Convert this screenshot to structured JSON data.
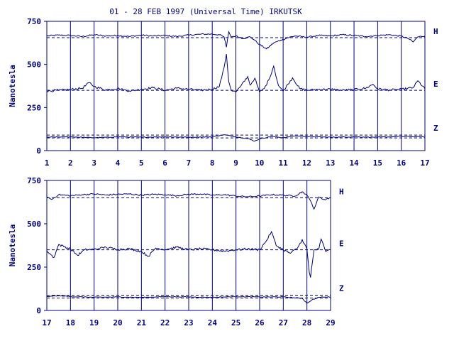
{
  "chart_data": {
    "type": "line",
    "title": "01 - 28 FEB 1997 (Universal Time) IRKUTSK",
    "ylabel": "Nanotesla",
    "y_ticks": [
      0,
      250,
      500,
      750
    ],
    "ylim": [
      0,
      750
    ],
    "color": "#000080",
    "panels": [
      {
        "xlim": [
          1,
          17
        ],
        "x_ticks": [
          1,
          2,
          3,
          4,
          5,
          6,
          7,
          8,
          9,
          10,
          11,
          12,
          13,
          14,
          15,
          16,
          17
        ],
        "series": [
          {
            "name": "H",
            "baseline": 655,
            "points": [
              [
                1,
                665
              ],
              [
                1.5,
                670
              ],
              [
                2,
                668
              ],
              [
                2.5,
                662
              ],
              [
                3,
                672
              ],
              [
                3.5,
                665
              ],
              [
                4,
                668
              ],
              [
                4.5,
                662
              ],
              [
                5,
                670
              ],
              [
                5.5,
                665
              ],
              [
                6,
                668
              ],
              [
                6.5,
                662
              ],
              [
                7,
                670
              ],
              [
                7.5,
                675
              ],
              [
                8,
                676
              ],
              [
                8.3,
                672
              ],
              [
                8.5,
                660
              ],
              [
                8.6,
                600
              ],
              [
                8.7,
                690
              ],
              [
                8.8,
                660
              ],
              [
                9,
                665
              ],
              [
                9.3,
                650
              ],
              [
                9.6,
                660
              ],
              [
                9.8,
                640
              ],
              [
                10,
                615
              ],
              [
                10.3,
                590
              ],
              [
                10.6,
                625
              ],
              [
                10.9,
                640
              ],
              [
                11.2,
                655
              ],
              [
                11.5,
                665
              ],
              [
                12,
                658
              ],
              [
                12.5,
                668
              ],
              [
                13,
                665
              ],
              [
                13.5,
                672
              ],
              [
                14,
                668
              ],
              [
                14.5,
                662
              ],
              [
                15,
                668
              ],
              [
                15.5,
                672
              ],
              [
                16,
                664
              ],
              [
                16.3,
                650
              ],
              [
                16.5,
                630
              ],
              [
                16.7,
                660
              ],
              [
                17,
                665
              ]
            ]
          },
          {
            "name": "E",
            "baseline": 350,
            "points": [
              [
                1,
                345
              ],
              [
                1.5,
                350
              ],
              [
                2,
                355
              ],
              [
                2.5,
                362
              ],
              [
                2.8,
                395
              ],
              [
                3,
                372
              ],
              [
                3.5,
                352
              ],
              [
                4,
                360
              ],
              [
                4.5,
                346
              ],
              [
                5,
                356
              ],
              [
                5.5,
                365
              ],
              [
                6,
                350
              ],
              [
                6.5,
                362
              ],
              [
                7,
                356
              ],
              [
                7.5,
                350
              ],
              [
                8,
                356
              ],
              [
                8.3,
                372
              ],
              [
                8.5,
                480
              ],
              [
                8.6,
                560
              ],
              [
                8.7,
                400
              ],
              [
                8.8,
                352
              ],
              [
                9,
                340
              ],
              [
                9.2,
                372
              ],
              [
                9.5,
                430
              ],
              [
                9.6,
                380
              ],
              [
                9.8,
                420
              ],
              [
                10,
                340
              ],
              [
                10.2,
                360
              ],
              [
                10.4,
                412
              ],
              [
                10.6,
                490
              ],
              [
                10.8,
                378
              ],
              [
                11,
                345
              ],
              [
                11.2,
                385
              ],
              [
                11.4,
                422
              ],
              [
                11.7,
                360
              ],
              [
                12,
                350
              ],
              [
                12.5,
                355
              ],
              [
                13,
                356
              ],
              [
                13.5,
                350
              ],
              [
                14,
                354
              ],
              [
                14.5,
                362
              ],
              [
                14.8,
                385
              ],
              [
                15,
                358
              ],
              [
                15.5,
                352
              ],
              [
                16,
                355
              ],
              [
                16.5,
                365
              ],
              [
                16.7,
                405
              ],
              [
                17,
                358
              ]
            ]
          },
          {
            "name": "Z",
            "baseline": 90,
            "points": [
              [
                1,
                78
              ],
              [
                2,
                80
              ],
              [
                3,
                75
              ],
              [
                4,
                80
              ],
              [
                5,
                78
              ],
              [
                6,
                80
              ],
              [
                7,
                78
              ],
              [
                8,
                80
              ],
              [
                8.5,
                92
              ],
              [
                9,
                80
              ],
              [
                9.5,
                70
              ],
              [
                9.8,
                55
              ],
              [
                10,
                68
              ],
              [
                10.5,
                82
              ],
              [
                11,
                75
              ],
              [
                11.5,
                85
              ],
              [
                12,
                82
              ],
              [
                12.5,
                80
              ],
              [
                13,
                78
              ],
              [
                14,
                80
              ],
              [
                15,
                78
              ],
              [
                16,
                82
              ],
              [
                17,
                80
              ]
            ]
          }
        ]
      },
      {
        "xlim": [
          17,
          29
        ],
        "x_ticks": [
          17,
          18,
          19,
          20,
          21,
          22,
          23,
          24,
          25,
          26,
          27,
          28,
          29
        ],
        "series": [
          {
            "name": "H",
            "baseline": 650,
            "points": [
              [
                17,
                655
              ],
              [
                17.2,
                640
              ],
              [
                17.5,
                668
              ],
              [
                18,
                662
              ],
              [
                18.5,
                668
              ],
              [
                19,
                672
              ],
              [
                19.5,
                666
              ],
              [
                20,
                670
              ],
              [
                20.5,
                672
              ],
              [
                21,
                665
              ],
              [
                21.5,
                670
              ],
              [
                22,
                668
              ],
              [
                22.5,
                662
              ],
              [
                23,
                670
              ],
              [
                23.5,
                672
              ],
              [
                24,
                665
              ],
              [
                24.5,
                668
              ],
              [
                25,
                660
              ],
              [
                25.5,
                656
              ],
              [
                26,
                660
              ],
              [
                26.5,
                668
              ],
              [
                27,
                665
              ],
              [
                27.5,
                660
              ],
              [
                27.8,
                685
              ],
              [
                28,
                665
              ],
              [
                28.2,
                620
              ],
              [
                28.3,
                585
              ],
              [
                28.5,
                655
              ],
              [
                28.7,
                640
              ],
              [
                29,
                648
              ]
            ]
          },
          {
            "name": "E",
            "baseline": 350,
            "points": [
              [
                17,
                345
              ],
              [
                17.3,
                305
              ],
              [
                17.5,
                380
              ],
              [
                18,
                355
              ],
              [
                18.3,
                318
              ],
              [
                18.6,
                350
              ],
              [
                19,
                352
              ],
              [
                19.5,
                365
              ],
              [
                20,
                352
              ],
              [
                20.5,
                356
              ],
              [
                21,
                340
              ],
              [
                21.3,
                312
              ],
              [
                21.6,
                360
              ],
              [
                22,
                352
              ],
              [
                22.5,
                365
              ],
              [
                23,
                350
              ],
              [
                23.5,
                356
              ],
              [
                24,
                350
              ],
              [
                24.5,
                342
              ],
              [
                25,
                350
              ],
              [
                25.5,
                355
              ],
              [
                26,
                350
              ],
              [
                26.3,
                405
              ],
              [
                26.5,
                455
              ],
              [
                26.7,
                375
              ],
              [
                27,
                350
              ],
              [
                27.3,
                330
              ],
              [
                27.6,
                360
              ],
              [
                27.8,
                408
              ],
              [
                28,
                355
              ],
              [
                28.1,
                220
              ],
              [
                28.15,
                190
              ],
              [
                28.3,
                350
              ],
              [
                28.5,
                352
              ],
              [
                28.6,
                412
              ],
              [
                28.8,
                340
              ],
              [
                29,
                350
              ]
            ]
          },
          {
            "name": "Z",
            "baseline": 88,
            "points": [
              [
                17,
                80
              ],
              [
                17.5,
                85
              ],
              [
                18,
                80
              ],
              [
                19,
                76
              ],
              [
                20,
                78
              ],
              [
                21,
                75
              ],
              [
                22,
                80
              ],
              [
                23,
                78
              ],
              [
                24,
                76
              ],
              [
                25,
                80
              ],
              [
                26,
                78
              ],
              [
                27,
                78
              ],
              [
                27.8,
                70
              ],
              [
                28,
                42
              ],
              [
                28.2,
                60
              ],
              [
                28.5,
                76
              ],
              [
                29,
                78
              ]
            ]
          }
        ]
      }
    ]
  }
}
